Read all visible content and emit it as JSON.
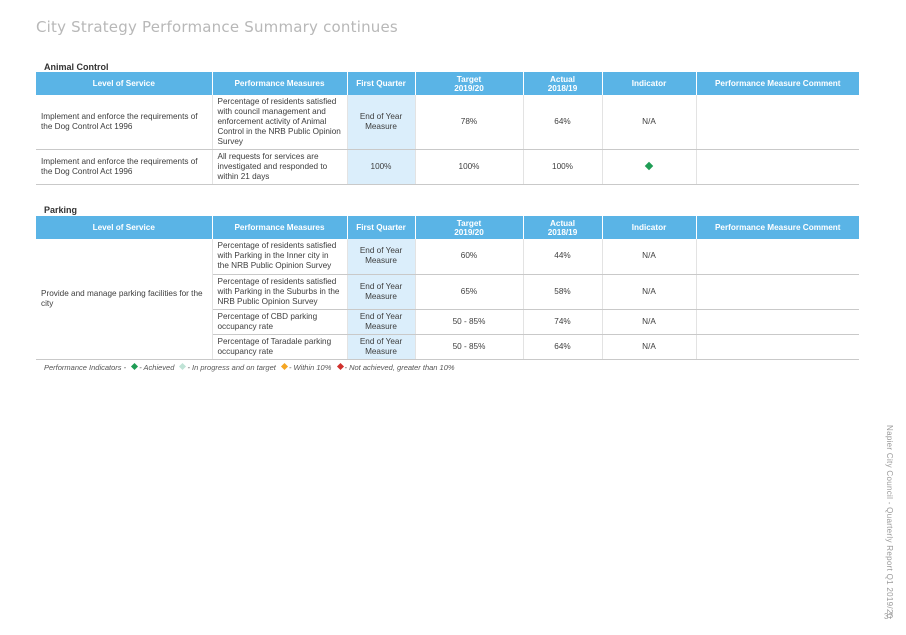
{
  "page_title": "City Strategy Performance Summary continues",
  "headers": [
    "Level of Service",
    "Performance Measures",
    "First Quarter",
    "Target\n2019/20",
    "Actual\n2018/19",
    "Indicator",
    "Performance Measure Comment"
  ],
  "animal_control": {
    "title": "Animal Control",
    "rows": [
      {
        "level_of_service": "Implement and enforce the requirements of the Dog Control Act 1996",
        "measure": "Percentage of residents satisfied with council management and enforcement activity of Animal Control in the NRB Public Opinion Survey",
        "first_quarter": "End of Year Measure",
        "target": "78%",
        "actual": "64%",
        "indicator": "N/A",
        "comment": ""
      },
      {
        "level_of_service": "Implement and enforce the requirements of the Dog Control Act 1996",
        "measure": "All requests for services are investigated and responded to within 21 days",
        "first_quarter": "100%",
        "target": "100%",
        "actual": "100%",
        "indicator": "",
        "indicator_icon": "green-diamond",
        "comment": ""
      }
    ]
  },
  "parking": {
    "title": "Parking",
    "level_of_service": "Provide and manage parking facilities for the city",
    "rows": [
      {
        "measure": "Percentage of residents satisfied with Parking in the Inner city in the NRB Public Opinion Survey",
        "first_quarter": "End of Year Measure",
        "target": "60%",
        "actual": "44%",
        "indicator": "N/A",
        "comment": ""
      },
      {
        "measure": "Percentage of residents satisfied with Parking in the Suburbs in the NRB Public Opinion Survey",
        "first_quarter": "End of Year Measure",
        "target": "65%",
        "actual": "58%",
        "indicator": "N/A",
        "comment": ""
      },
      {
        "measure": "Percentage of CBD parking occupancy rate",
        "first_quarter": "End of Year Measure",
        "target": "50 - 85%",
        "actual": "74%",
        "indicator": "N/A",
        "comment": ""
      },
      {
        "measure": "Percentage of Taradale parking occupancy rate",
        "first_quarter": "End of Year Measure",
        "target": "50 - 85%",
        "actual": "64%",
        "indicator": "N/A",
        "comment": ""
      }
    ]
  },
  "legend": {
    "prefix": "Performance Indicators -",
    "items": [
      {
        "label": "- Achieved",
        "color": "#1f9d55"
      },
      {
        "label": "- In progress and on target",
        "color": "#bfe3d6"
      },
      {
        "label": "- Within 10%",
        "color": "#f5a623"
      },
      {
        "label": "- Not achieved, greater than 10%",
        "color": "#d0312d"
      }
    ]
  },
  "side_text": "Napier City Council - Quarterly Report Q1 2019/20",
  "page_number": "37",
  "colors": {
    "header_blue": "#5ab4e6",
    "first_quarter_fill": "#dbeefb",
    "achieved_green": "#1f9d55"
  }
}
